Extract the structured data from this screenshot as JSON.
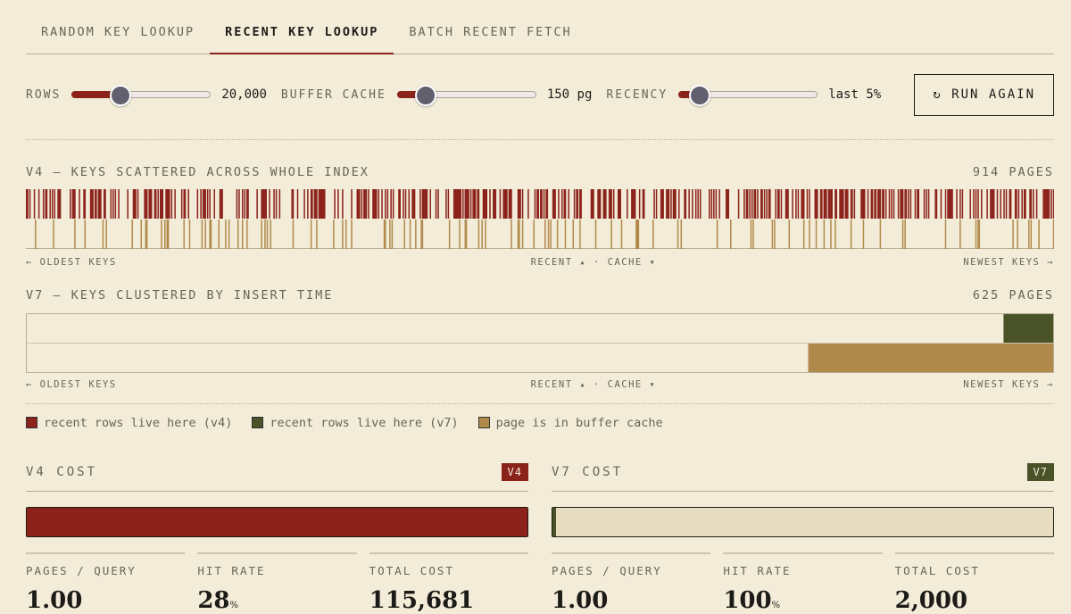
{
  "tabs": [
    {
      "label": "RANDOM KEY LOOKUP"
    },
    {
      "label": "RECENT KEY LOOKUP",
      "active": true
    },
    {
      "label": "BATCH RECENT FETCH"
    }
  ],
  "controls": {
    "rows": {
      "label": "ROWS",
      "value": "20,000",
      "fraction": 0.35
    },
    "cache": {
      "label": "BUFFER CACHE",
      "value": "150 pg",
      "fraction": 0.2
    },
    "recency": {
      "label": "RECENCY",
      "value": "last 5%",
      "fraction": 0.15
    },
    "run_label": "↻ RUN AGAIN"
  },
  "v4": {
    "title": "V4 — KEYS SCATTERED ACROSS WHOLE INDEX",
    "pages": "914 PAGES",
    "recent_density": 0.45,
    "cache_density": 0.12
  },
  "v7": {
    "title": "V7 — KEYS CLUSTERED BY INSERT TIME",
    "pages": "625 PAGES",
    "recent_fraction": 0.05,
    "cache_fraction": 0.24
  },
  "axis": {
    "left": "← OLDEST KEYS",
    "mid": "RECENT ▴ · CACHE ▾",
    "right": "NEWEST KEYS →"
  },
  "legend": [
    {
      "label": "recent rows live here (v4)",
      "color": "#8b231b"
    },
    {
      "label": "recent rows live here (v7)",
      "color": "#4a5228"
    },
    {
      "label": "page is in buffer cache",
      "color": "#b08a4a"
    }
  ],
  "colors": {
    "v4": "#8b231b",
    "v7": "#4a5228",
    "cache": "#b08a4a"
  },
  "costs": [
    {
      "title": "V4 COST",
      "badge": "V4",
      "fill": 1.0,
      "stats": [
        {
          "k": "PAGES / QUERY",
          "v": "1.00",
          "u": ""
        },
        {
          "k": "HIT RATE",
          "v": "28",
          "u": "%"
        },
        {
          "k": "TOTAL COST",
          "v": "115,681",
          "u": ""
        }
      ]
    },
    {
      "title": "V7 COST",
      "badge": "V7",
      "fill": 0.008,
      "stats": [
        {
          "k": "PAGES / QUERY",
          "v": "1.00",
          "u": ""
        },
        {
          "k": "HIT RATE",
          "v": "100",
          "u": "%"
        },
        {
          "k": "TOTAL COST",
          "v": "2,000",
          "u": ""
        }
      ]
    }
  ]
}
